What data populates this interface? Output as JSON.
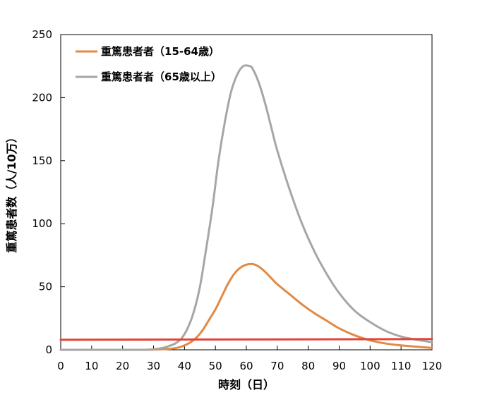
{
  "chart_data": {
    "type": "line",
    "title": "",
    "xlabel": "時刻（日）",
    "ylabel": "重篤患者数（人/10万）",
    "xlim": [
      0,
      120
    ],
    "ylim": [
      0,
      250
    ],
    "xticks": [
      0,
      10,
      20,
      30,
      40,
      50,
      60,
      70,
      80,
      90,
      100,
      110,
      120
    ],
    "yticks": [
      0,
      50,
      100,
      150,
      200,
      250
    ],
    "grid": false,
    "legend_position": "top-left",
    "series": [
      {
        "name": "重篤患者者（15-64歳）",
        "color": "#e08a45",
        "x": [
          0,
          25,
          30,
          33,
          36,
          38,
          40,
          42,
          44,
          46,
          48,
          50,
          52,
          54,
          56,
          58,
          60,
          62,
          64,
          66,
          68,
          70,
          74,
          78,
          82,
          86,
          90,
          95,
          100,
          105,
          110,
          115,
          120
        ],
        "values": [
          0,
          0,
          0.2,
          0.5,
          1,
          1.8,
          3.5,
          6,
          10,
          16,
          24,
          32,
          42,
          52,
          60,
          65,
          67.5,
          68,
          66,
          62,
          57,
          52,
          44,
          36,
          29,
          23,
          17,
          11.5,
          7.5,
          5,
          3.5,
          2.5,
          1.5
        ]
      },
      {
        "name": "重篤患者者（65歳以上）",
        "color": "#a6a6a6",
        "x": [
          0,
          25,
          30,
          33,
          35,
          37,
          39,
          41,
          43,
          45,
          47,
          49,
          51,
          53,
          55,
          57,
          59,
          61,
          62,
          64,
          66,
          68,
          70,
          74,
          78,
          82,
          86,
          90,
          95,
          100,
          105,
          110,
          115,
          120
        ],
        "values": [
          0,
          0,
          0.5,
          1.5,
          3,
          5,
          9,
          17,
          30,
          50,
          80,
          112,
          150,
          180,
          204,
          218,
          225,
          225,
          223,
          212,
          196,
          177,
          158,
          127,
          100,
          78,
          60,
          45,
          31,
          22,
          15,
          10.5,
          8,
          6
        ]
      },
      {
        "name": "",
        "color": "#e0443a",
        "x": [
          0,
          120
        ],
        "values": [
          8,
          8.5
        ]
      }
    ]
  }
}
